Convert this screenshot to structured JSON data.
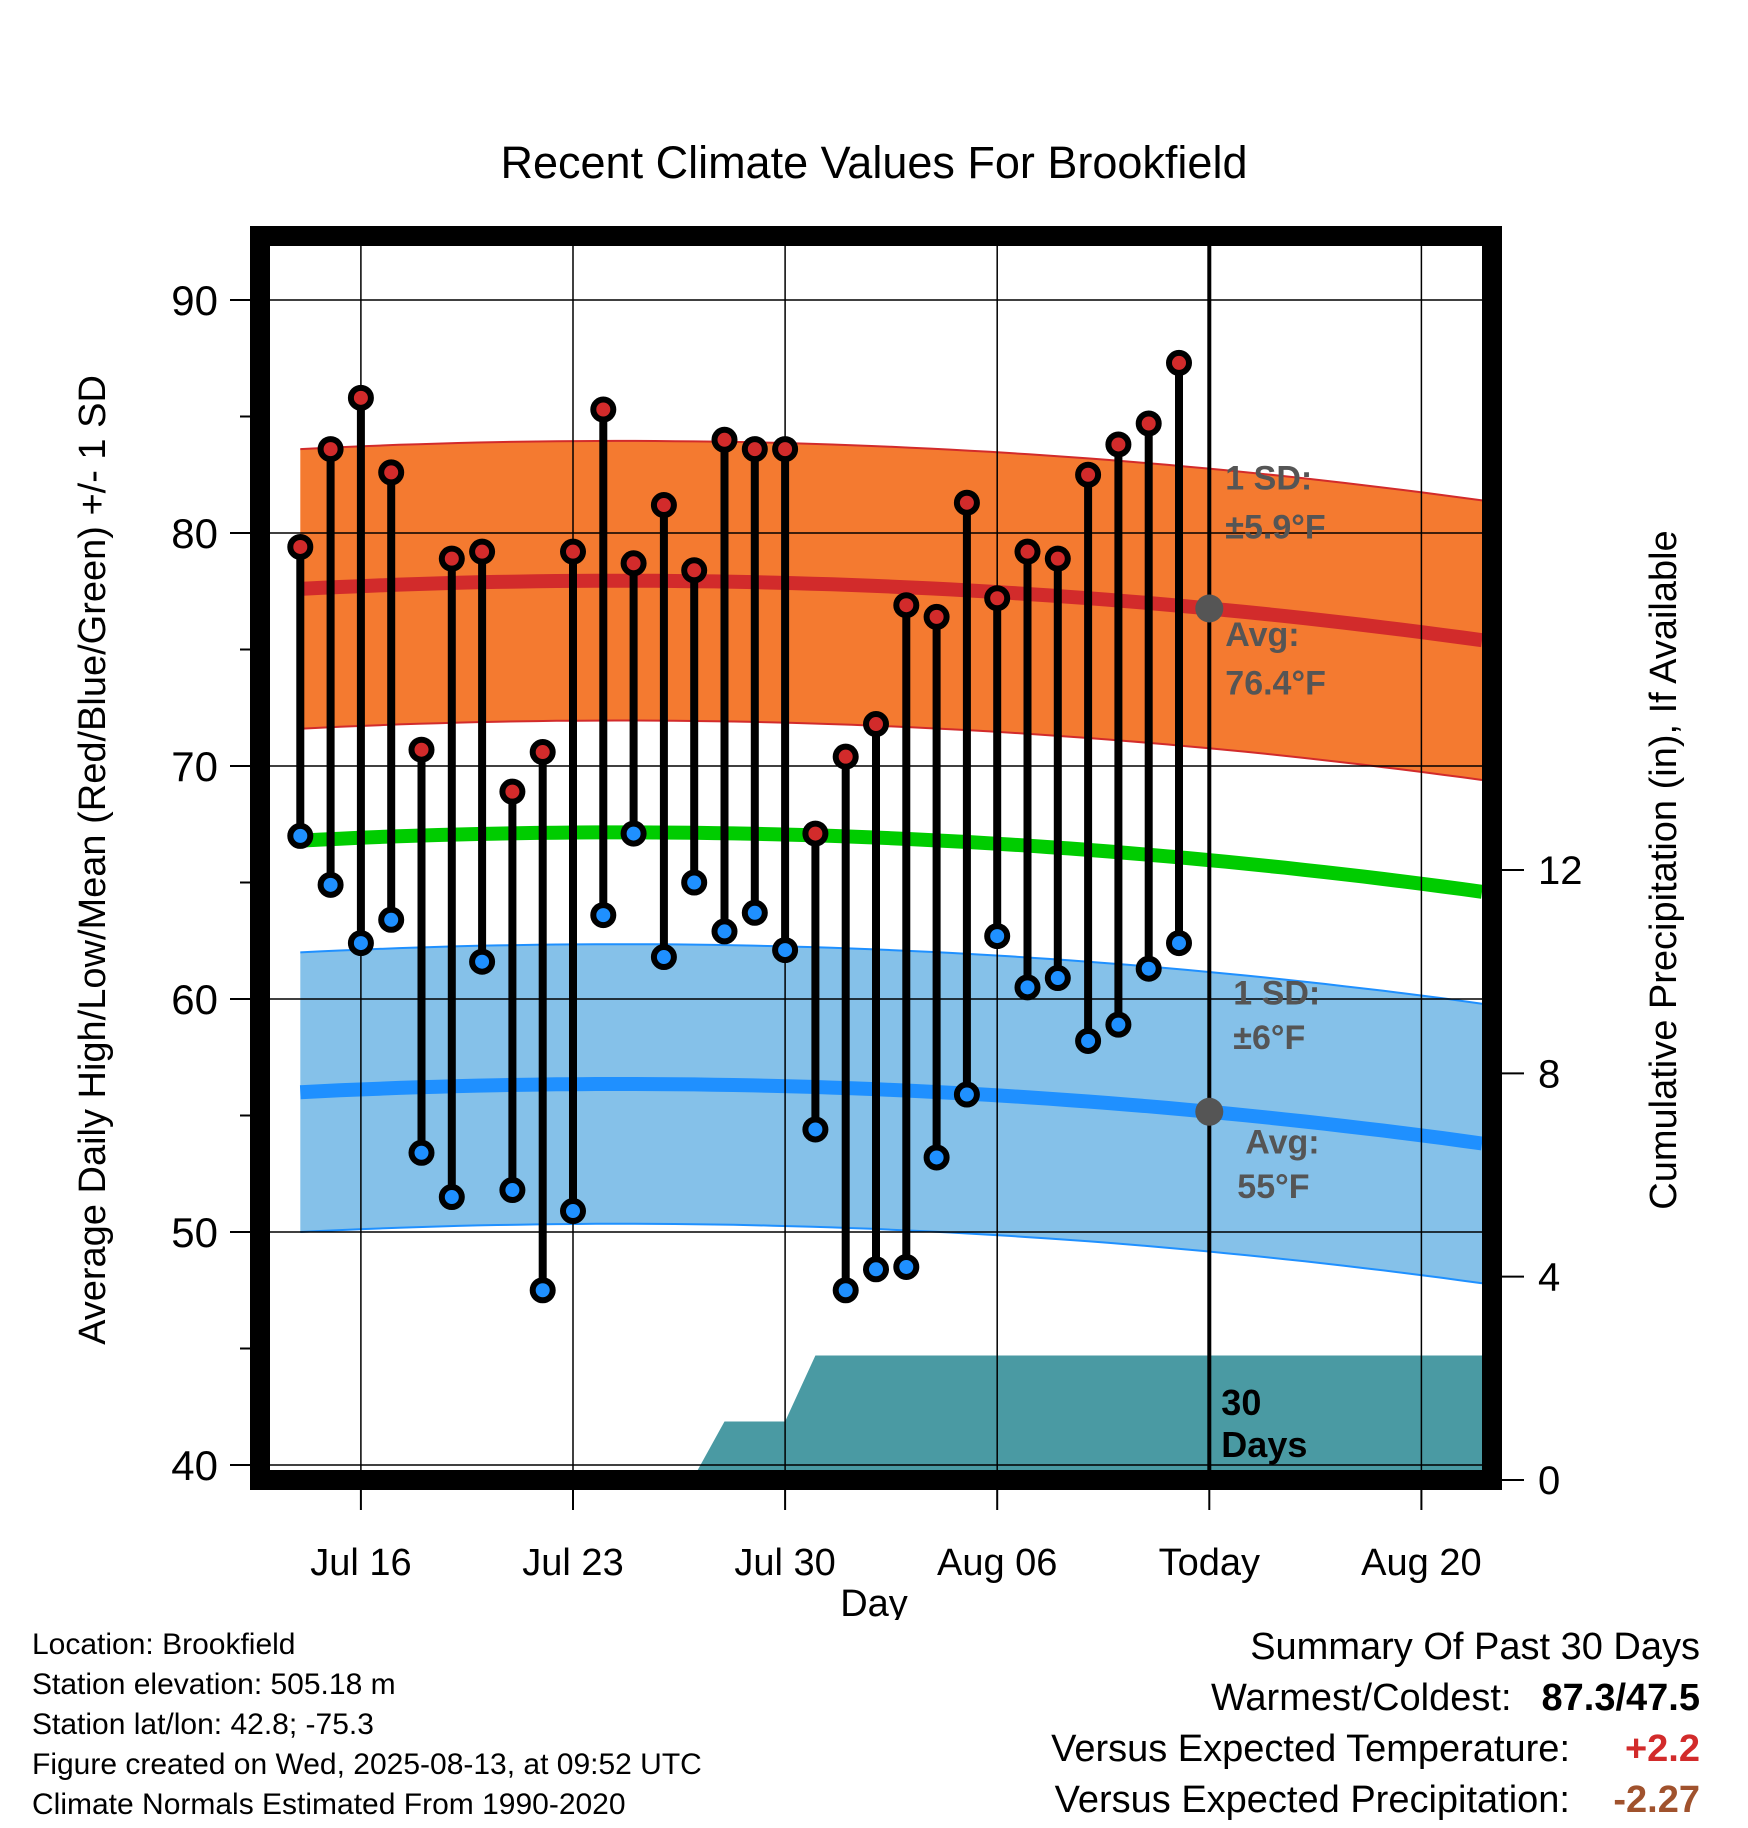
{
  "chart_data": {
    "type": "line",
    "title": "Recent Climate Values For Brookfield",
    "xlabel": "Day",
    "ylabel_left": "Average Daily High/Low/Mean (Red/Blue/Green) +/- 1 SD",
    "ylabel_right": "Cumulative Precipitation (in), If Available",
    "ylim": [
      40,
      92
    ],
    "ylim_right": [
      0,
      24
    ],
    "grid": true,
    "y_ticks": [
      "40",
      "50",
      "60",
      "70",
      "80",
      "90"
    ],
    "y_ticks_right": [
      "0",
      "4",
      "8",
      "12"
    ],
    "x_ticks": [
      "Jul 16",
      "Jul 23",
      "Jul 30",
      "Aug 06",
      "Today",
      "Aug 20"
    ],
    "x_start": "Jul 13",
    "x_end": "Aug 22",
    "days": [
      "Jul 14",
      "Jul 15",
      "Jul 16",
      "Jul 17",
      "Jul 18",
      "Jul 19",
      "Jul 20",
      "Jul 21",
      "Jul 22",
      "Jul 23",
      "Jul 24",
      "Jul 25",
      "Jul 26",
      "Jul 27",
      "Jul 28",
      "Jul 29",
      "Jul 30",
      "Jul 31",
      "Aug 01",
      "Aug 02",
      "Aug 03",
      "Aug 04",
      "Aug 05",
      "Aug 06",
      "Aug 07",
      "Aug 08",
      "Aug 09",
      "Aug 10",
      "Aug 11",
      "Aug 12"
    ],
    "series": [
      {
        "name": "High",
        "values": [
          79.4,
          83.6,
          85.8,
          82.6,
          70.7,
          78.9,
          79.2,
          68.9,
          70.6,
          79.2,
          85.3,
          78.7,
          81.2,
          78.4,
          84.0,
          83.6,
          83.6,
          67.1,
          70.4,
          71.8,
          76.9,
          76.4,
          81.3,
          77.2,
          79.2,
          78.9,
          82.5,
          83.8,
          84.7,
          87.3
        ]
      },
      {
        "name": "Low",
        "values": [
          67.0,
          64.9,
          62.4,
          63.4,
          53.4,
          51.5,
          61.6,
          51.8,
          47.5,
          50.9,
          63.6,
          67.1,
          61.8,
          65.0,
          62.9,
          63.7,
          62.1,
          54.4,
          47.5,
          48.4,
          48.5,
          53.2,
          55.9,
          62.7,
          60.5,
          60.9,
          58.2,
          58.9,
          61.3,
          62.4
        ]
      }
    ],
    "normal_high": {
      "start": 77.6,
      "mid": 77.7,
      "end": 75.4,
      "sd_label": "1 SD:",
      "sd_value": "±5.9°F",
      "avg_label": "Avg:",
      "avg_value": "76.4°F"
    },
    "normal_low": {
      "start": 56.0,
      "mid": 56.1,
      "end": 53.8,
      "sd_label": "1 SD:",
      "sd_value": "±6°F",
      "avg_label": "Avg:",
      "avg_value": "55°F"
    },
    "normal_mean": {
      "start": 66.8,
      "mid": 66.9,
      "end": 64.6
    },
    "precip_window_label": "30 Days",
    "precip_cumulative": [
      {
        "day": "Jul 13",
        "value": 0.0
      },
      {
        "day": "Jul 19",
        "value": 0.03
      },
      {
        "day": "Jul 27",
        "value": 0.07
      },
      {
        "day": "Jul 28",
        "value": 1.15
      },
      {
        "day": "Jul 30",
        "value": 1.15
      },
      {
        "day": "Jul 31",
        "value": 2.45
      },
      {
        "day": "Aug 22",
        "value": 2.45
      }
    ],
    "colors": {
      "high": "#d22b2b",
      "low": "#1f90ff",
      "mean": "#00cc00",
      "high_band": "#f47a30",
      "low_band": "#85c1e9",
      "precip": "#4a9aa3",
      "marker": "#555555",
      "label_gray": "#555555"
    }
  },
  "footer": {
    "location": "Location: Brookfield",
    "elevation": "Station elevation: 505.18 m",
    "latlon": "Station lat/lon: 42.8; -75.3",
    "created": "Figure created on Wed, 2025-08-13, at 09:52 UTC",
    "normals": "Climate Normals Estimated From 1990-2020"
  },
  "summary": {
    "title": "Summary Of Past 30 Days",
    "warmest_label": "Warmest/Coldest:",
    "warmest_value": "87.3/47.5",
    "temp_label": "Versus Expected Temperature:",
    "temp_value": "+2.2",
    "temp_color": "#d22b2b",
    "precip_label": "Versus Expected Precipitation:",
    "precip_value": "-2.27",
    "precip_color": "#a0522d"
  }
}
